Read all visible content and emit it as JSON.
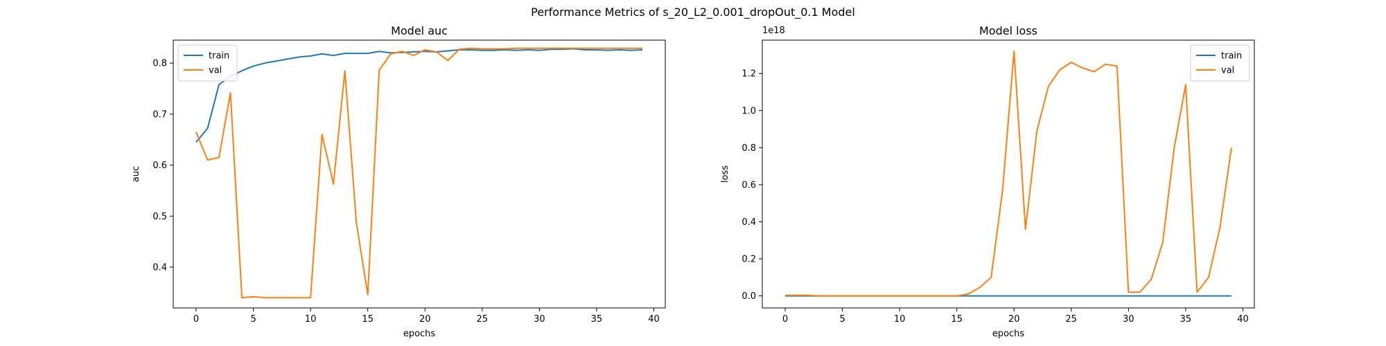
{
  "figure": {
    "suptitle": "Performance Metrics of s_20_L2_0.001_dropOut_0.1 Model"
  },
  "colors": {
    "train": "#1f77b4",
    "val": "#ff7f0e",
    "axis": "#000000",
    "legend_border": "#cccccc"
  },
  "chart_data": [
    {
      "type": "line",
      "title": "Model auc",
      "xlabel": "epochs",
      "ylabel": "auc",
      "xlim": [
        -2,
        41
      ],
      "ylim": [
        0.32,
        0.845
      ],
      "xticks": [
        0,
        5,
        10,
        15,
        20,
        25,
        30,
        35,
        40
      ],
      "yticks": [
        0.4,
        0.5,
        0.6,
        0.7,
        0.8
      ],
      "ytick_labels": [
        "0.4",
        "0.5",
        "0.6",
        "0.7",
        "0.8"
      ],
      "offset_label": "",
      "legend_position": "upper-left",
      "grid": false,
      "x": [
        0,
        1,
        2,
        3,
        4,
        5,
        6,
        7,
        8,
        9,
        10,
        11,
        12,
        13,
        14,
        15,
        16,
        17,
        18,
        19,
        20,
        21,
        22,
        23,
        24,
        25,
        26,
        27,
        28,
        29,
        30,
        31,
        32,
        33,
        34,
        35,
        36,
        37,
        38,
        39
      ],
      "series": [
        {
          "name": "train",
          "values": [
            0.645,
            0.672,
            0.758,
            0.774,
            0.785,
            0.794,
            0.8,
            0.804,
            0.808,
            0.812,
            0.814,
            0.818,
            0.815,
            0.819,
            0.819,
            0.819,
            0.823,
            0.82,
            0.821,
            0.822,
            0.823,
            0.822,
            0.824,
            0.826,
            0.826,
            0.825,
            0.825,
            0.826,
            0.825,
            0.826,
            0.825,
            0.827,
            0.827,
            0.828,
            0.826,
            0.826,
            0.825,
            0.826,
            0.825,
            0.826
          ]
        },
        {
          "name": "val",
          "values": [
            0.665,
            0.61,
            0.615,
            0.742,
            0.34,
            0.342,
            0.34,
            0.34,
            0.34,
            0.34,
            0.34,
            0.66,
            0.563,
            0.785,
            0.488,
            0.346,
            0.786,
            0.818,
            0.823,
            0.815,
            0.826,
            0.822,
            0.805,
            0.827,
            0.829,
            0.828,
            0.828,
            0.828,
            0.829,
            0.829,
            0.829,
            0.829,
            0.829,
            0.829,
            0.829,
            0.829,
            0.829,
            0.829,
            0.829,
            0.829
          ]
        }
      ]
    },
    {
      "type": "line",
      "title": "Model loss",
      "xlabel": "epochs",
      "ylabel": "loss",
      "xlim": [
        -2,
        41
      ],
      "ylim": [
        -0.065,
        1.38
      ],
      "xticks": [
        0,
        5,
        10,
        15,
        20,
        25,
        30,
        35,
        40
      ],
      "yticks": [
        0.0,
        0.2,
        0.4,
        0.6,
        0.8,
        1.0,
        1.2
      ],
      "ytick_labels": [
        "0.0",
        "0.2",
        "0.4",
        "0.6",
        "0.8",
        "1.0",
        "1.2"
      ],
      "offset_label": "1e18",
      "legend_position": "upper-right",
      "grid": false,
      "x": [
        0,
        1,
        2,
        3,
        4,
        5,
        6,
        7,
        8,
        9,
        10,
        11,
        12,
        13,
        14,
        15,
        16,
        17,
        18,
        19,
        20,
        21,
        22,
        23,
        24,
        25,
        26,
        27,
        28,
        29,
        30,
        31,
        32,
        33,
        34,
        35,
        36,
        37,
        38,
        39
      ],
      "series": [
        {
          "name": "train",
          "values": [
            0,
            0,
            0,
            0,
            0,
            0,
            0,
            0,
            0,
            0,
            0,
            0,
            0,
            0,
            0,
            0,
            0,
            0,
            0,
            0,
            0,
            0,
            0,
            0,
            0,
            0,
            0,
            0,
            0,
            0,
            0,
            0,
            0,
            0,
            0,
            0,
            0,
            0,
            0,
            0
          ]
        },
        {
          "name": "val",
          "values": [
            0.003,
            0.003,
            0.003,
            0.0,
            0.0,
            0.0,
            0.0,
            0.0,
            0.0,
            0.0,
            0.0,
            0.0,
            0.0,
            0.0,
            0.0,
            0.0,
            0.01,
            0.045,
            0.1,
            0.57,
            1.32,
            0.36,
            0.89,
            1.13,
            1.22,
            1.26,
            1.23,
            1.21,
            1.25,
            1.24,
            0.02,
            0.02,
            0.09,
            0.29,
            0.8,
            1.14,
            0.02,
            0.1,
            0.37,
            0.8
          ]
        }
      ]
    }
  ]
}
